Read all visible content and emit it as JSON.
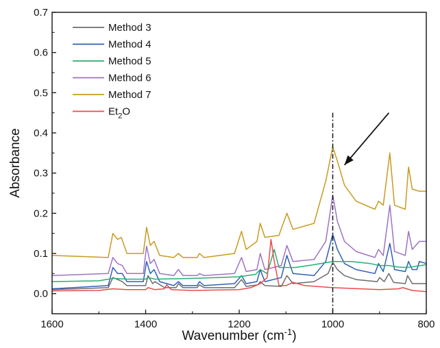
{
  "chart_data": {
    "type": "line",
    "xlabel": "Wavenumber (cm",
    "xlabel_sup": "-1",
    "xlabel_end": ")",
    "ylabel": "Absorbance",
    "xlim": [
      1600,
      800
    ],
    "ylim": [
      -0.05,
      0.7
    ],
    "x_ticks": [
      1600,
      1400,
      1200,
      1000,
      800
    ],
    "y_ticks": [
      0.0,
      0.1,
      0.2,
      0.3,
      0.4,
      0.5,
      0.6,
      0.7
    ],
    "legend_position": "top-left",
    "grid": false,
    "reference_line": {
      "x": 1000,
      "y_top": 0.45,
      "style": "dash-dot"
    },
    "arrow": {
      "from": [
        880,
        0.45
      ],
      "to": [
        975,
        0.32
      ]
    },
    "series": [
      {
        "name": "Method 3",
        "color": "#6b6b6b",
        "points": [
          [
            1600,
            0.01
          ],
          [
            1480,
            0.015
          ],
          [
            1470,
            0.04
          ],
          [
            1460,
            0.035
          ],
          [
            1450,
            0.03
          ],
          [
            1440,
            0.02
          ],
          [
            1400,
            0.02
          ],
          [
            1395,
            0.045
          ],
          [
            1385,
            0.025
          ],
          [
            1380,
            0.03
          ],
          [
            1360,
            0.015
          ],
          [
            1335,
            0.015
          ],
          [
            1330,
            0.025
          ],
          [
            1320,
            0.015
          ],
          [
            1290,
            0.015
          ],
          [
            1285,
            0.022
          ],
          [
            1275,
            0.015
          ],
          [
            1210,
            0.015
          ],
          [
            1195,
            0.035
          ],
          [
            1185,
            0.018
          ],
          [
            1160,
            0.022
          ],
          [
            1155,
            0.03
          ],
          [
            1145,
            0.02
          ],
          [
            1110,
            0.018
          ],
          [
            1098,
            0.045
          ],
          [
            1085,
            0.025
          ],
          [
            1040,
            0.03
          ],
          [
            1010,
            0.05
          ],
          [
            1000,
            0.078
          ],
          [
            990,
            0.06
          ],
          [
            975,
            0.045
          ],
          [
            950,
            0.035
          ],
          [
            905,
            0.03
          ],
          [
            900,
            0.04
          ],
          [
            890,
            0.03
          ],
          [
            880,
            0.05
          ],
          [
            870,
            0.028
          ],
          [
            845,
            0.025
          ],
          [
            840,
            0.045
          ],
          [
            830,
            0.025
          ],
          [
            800,
            0.025
          ]
        ]
      },
      {
        "name": "Method 4",
        "color": "#2d5fb4",
        "points": [
          [
            1600,
            0.012
          ],
          [
            1480,
            0.02
          ],
          [
            1470,
            0.065
          ],
          [
            1460,
            0.05
          ],
          [
            1450,
            0.05
          ],
          [
            1440,
            0.03
          ],
          [
            1405,
            0.03
          ],
          [
            1398,
            0.08
          ],
          [
            1390,
            0.05
          ],
          [
            1382,
            0.06
          ],
          [
            1370,
            0.03
          ],
          [
            1340,
            0.02
          ],
          [
            1330,
            0.03
          ],
          [
            1320,
            0.02
          ],
          [
            1290,
            0.02
          ],
          [
            1285,
            0.03
          ],
          [
            1275,
            0.02
          ],
          [
            1210,
            0.025
          ],
          [
            1195,
            0.045
          ],
          [
            1185,
            0.025
          ],
          [
            1162,
            0.03
          ],
          [
            1155,
            0.06
          ],
          [
            1145,
            0.03
          ],
          [
            1110,
            0.04
          ],
          [
            1098,
            0.095
          ],
          [
            1085,
            0.05
          ],
          [
            1040,
            0.045
          ],
          [
            1015,
            0.08
          ],
          [
            1000,
            0.148
          ],
          [
            990,
            0.11
          ],
          [
            975,
            0.075
          ],
          [
            950,
            0.06
          ],
          [
            910,
            0.05
          ],
          [
            902,
            0.075
          ],
          [
            892,
            0.055
          ],
          [
            878,
            0.125
          ],
          [
            868,
            0.06
          ],
          [
            845,
            0.055
          ],
          [
            838,
            0.08
          ],
          [
            830,
            0.06
          ],
          [
            820,
            0.06
          ],
          [
            815,
            0.08
          ],
          [
            800,
            0.075
          ]
        ]
      },
      {
        "name": "Method 5",
        "color": "#27ae72",
        "points": [
          [
            1600,
            0.03
          ],
          [
            1500,
            0.032
          ],
          [
            1470,
            0.038
          ],
          [
            1440,
            0.036
          ],
          [
            1400,
            0.036
          ],
          [
            1395,
            0.04
          ],
          [
            1380,
            0.036
          ],
          [
            1300,
            0.038
          ],
          [
            1250,
            0.04
          ],
          [
            1200,
            0.042
          ],
          [
            1165,
            0.048
          ],
          [
            1155,
            0.06
          ],
          [
            1140,
            0.05
          ],
          [
            1125,
            0.11
          ],
          [
            1115,
            0.065
          ],
          [
            1100,
            0.065
          ],
          [
            1080,
            0.065
          ],
          [
            1040,
            0.072
          ],
          [
            1000,
            0.08
          ],
          [
            960,
            0.08
          ],
          [
            920,
            0.075
          ],
          [
            900,
            0.07
          ],
          [
            880,
            0.07
          ],
          [
            860,
            0.066
          ],
          [
            840,
            0.065
          ],
          [
            800,
            0.072
          ]
        ]
      },
      {
        "name": "Method 6",
        "color": "#9e72c3",
        "points": [
          [
            1600,
            0.045
          ],
          [
            1480,
            0.05
          ],
          [
            1470,
            0.09
          ],
          [
            1460,
            0.075
          ],
          [
            1450,
            0.07
          ],
          [
            1440,
            0.05
          ],
          [
            1405,
            0.05
          ],
          [
            1398,
            0.118
          ],
          [
            1390,
            0.075
          ],
          [
            1382,
            0.085
          ],
          [
            1370,
            0.05
          ],
          [
            1340,
            0.045
          ],
          [
            1330,
            0.06
          ],
          [
            1320,
            0.045
          ],
          [
            1290,
            0.045
          ],
          [
            1285,
            0.05
          ],
          [
            1275,
            0.045
          ],
          [
            1210,
            0.05
          ],
          [
            1195,
            0.09
          ],
          [
            1185,
            0.055
          ],
          [
            1162,
            0.06
          ],
          [
            1155,
            0.1
          ],
          [
            1145,
            0.06
          ],
          [
            1110,
            0.07
          ],
          [
            1098,
            0.12
          ],
          [
            1085,
            0.08
          ],
          [
            1040,
            0.085
          ],
          [
            1015,
            0.13
          ],
          [
            1000,
            0.245
          ],
          [
            990,
            0.18
          ],
          [
            975,
            0.13
          ],
          [
            950,
            0.105
          ],
          [
            910,
            0.09
          ],
          [
            902,
            0.11
          ],
          [
            892,
            0.095
          ],
          [
            878,
            0.22
          ],
          [
            868,
            0.105
          ],
          [
            845,
            0.095
          ],
          [
            838,
            0.155
          ],
          [
            830,
            0.11
          ],
          [
            815,
            0.13
          ],
          [
            800,
            0.13
          ]
        ]
      },
      {
        "name": "Method 7",
        "color": "#c89a1e",
        "points": [
          [
            1600,
            0.095
          ],
          [
            1480,
            0.09
          ],
          [
            1470,
            0.15
          ],
          [
            1460,
            0.135
          ],
          [
            1452,
            0.14
          ],
          [
            1440,
            0.1
          ],
          [
            1405,
            0.1
          ],
          [
            1398,
            0.165
          ],
          [
            1390,
            0.12
          ],
          [
            1382,
            0.13
          ],
          [
            1370,
            0.095
          ],
          [
            1340,
            0.09
          ],
          [
            1330,
            0.1
          ],
          [
            1320,
            0.09
          ],
          [
            1290,
            0.09
          ],
          [
            1285,
            0.1
          ],
          [
            1275,
            0.09
          ],
          [
            1210,
            0.1
          ],
          [
            1195,
            0.155
          ],
          [
            1185,
            0.11
          ],
          [
            1162,
            0.13
          ],
          [
            1155,
            0.175
          ],
          [
            1145,
            0.14
          ],
          [
            1115,
            0.145
          ],
          [
            1098,
            0.2
          ],
          [
            1085,
            0.16
          ],
          [
            1040,
            0.175
          ],
          [
            1015,
            0.28
          ],
          [
            1000,
            0.365
          ],
          [
            990,
            0.33
          ],
          [
            975,
            0.27
          ],
          [
            950,
            0.23
          ],
          [
            910,
            0.21
          ],
          [
            902,
            0.23
          ],
          [
            892,
            0.22
          ],
          [
            878,
            0.35
          ],
          [
            868,
            0.22
          ],
          [
            845,
            0.21
          ],
          [
            838,
            0.315
          ],
          [
            830,
            0.26
          ],
          [
            815,
            0.255
          ],
          [
            800,
            0.255
          ]
        ]
      },
      {
        "name": "Et",
        "name_sub": "2",
        "name_end": "O",
        "color": "#e84a4a",
        "points": [
          [
            1600,
            0.007
          ],
          [
            1500,
            0.008
          ],
          [
            1470,
            0.012
          ],
          [
            1440,
            0.01
          ],
          [
            1400,
            0.01
          ],
          [
            1395,
            0.015
          ],
          [
            1380,
            0.01
          ],
          [
            1360,
            0.012
          ],
          [
            1355,
            0.022
          ],
          [
            1345,
            0.01
          ],
          [
            1300,
            0.008
          ],
          [
            1200,
            0.01
          ],
          [
            1175,
            0.015
          ],
          [
            1165,
            0.02
          ],
          [
            1155,
            0.025
          ],
          [
            1140,
            0.04
          ],
          [
            1132,
            0.135
          ],
          [
            1125,
            0.08
          ],
          [
            1115,
            0.02
          ],
          [
            1100,
            0.02
          ],
          [
            1085,
            0.028
          ],
          [
            1060,
            0.02
          ],
          [
            1000,
            0.015
          ],
          [
            900,
            0.01
          ],
          [
            860,
            0.012
          ],
          [
            850,
            0.015
          ],
          [
            830,
            0.008
          ],
          [
            800,
            0.005
          ]
        ]
      }
    ]
  }
}
